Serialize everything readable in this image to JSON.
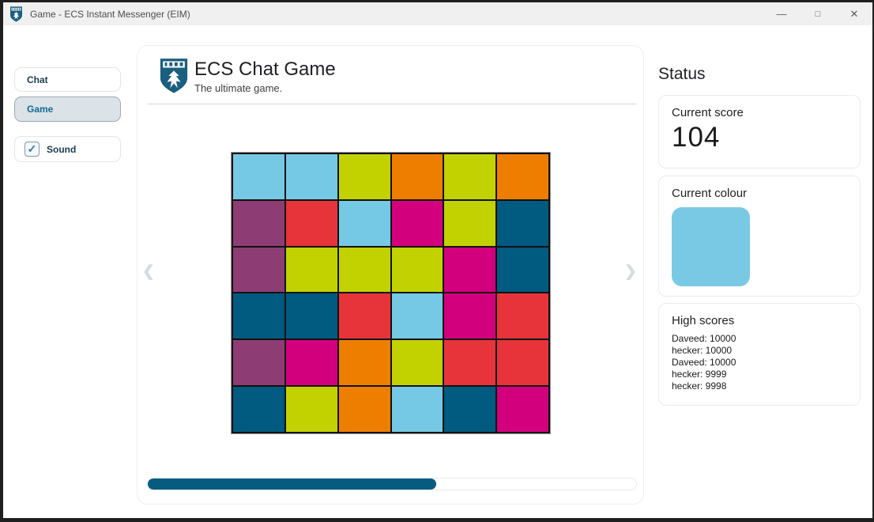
{
  "window": {
    "title": "Game - ECS Instant Messenger (EIM)",
    "controls": {
      "minimize": "—",
      "maximize": "□",
      "close": "✕"
    }
  },
  "sidebar": {
    "chat_label": "Chat",
    "game_label": "Game",
    "sound": {
      "label": "Sound",
      "checked": true,
      "checkmark": "✓"
    }
  },
  "main": {
    "title": "ECS Chat Game",
    "subtitle": "The ultimate game.",
    "nav": {
      "prev": "❮",
      "next": "❯"
    },
    "grid": {
      "rows": 6,
      "cols": 6,
      "palette": {
        "sky": "#76c9e4",
        "lime": "#c2d200",
        "orange": "#ee7e00",
        "purple": "#8d3d73",
        "red": "#e6343a",
        "magenta": "#d3007e",
        "navy": "#015a80"
      },
      "cells": [
        [
          "sky",
          "sky",
          "lime",
          "orange",
          "lime",
          "orange"
        ],
        [
          "purple",
          "red",
          "sky",
          "magenta",
          "lime",
          "navy"
        ],
        [
          "purple",
          "lime",
          "lime",
          "lime",
          "magenta",
          "navy"
        ],
        [
          "navy",
          "navy",
          "red",
          "sky",
          "magenta",
          "red"
        ],
        [
          "purple",
          "magenta",
          "orange",
          "lime",
          "red",
          "red"
        ],
        [
          "navy",
          "lime",
          "orange",
          "sky",
          "navy",
          "magenta"
        ]
      ]
    },
    "progress": {
      "percent": 59
    }
  },
  "status": {
    "heading": "Status",
    "score": {
      "label": "Current score",
      "value": "104"
    },
    "colour": {
      "label": "Current colour",
      "value": "#79c9e4"
    },
    "high_scores": {
      "label": "High scores",
      "entries": [
        "Daveed: 10000",
        "hecker: 10000",
        "Daveed: 10000",
        "hecker: 9999",
        "hecker: 9998"
      ]
    }
  }
}
